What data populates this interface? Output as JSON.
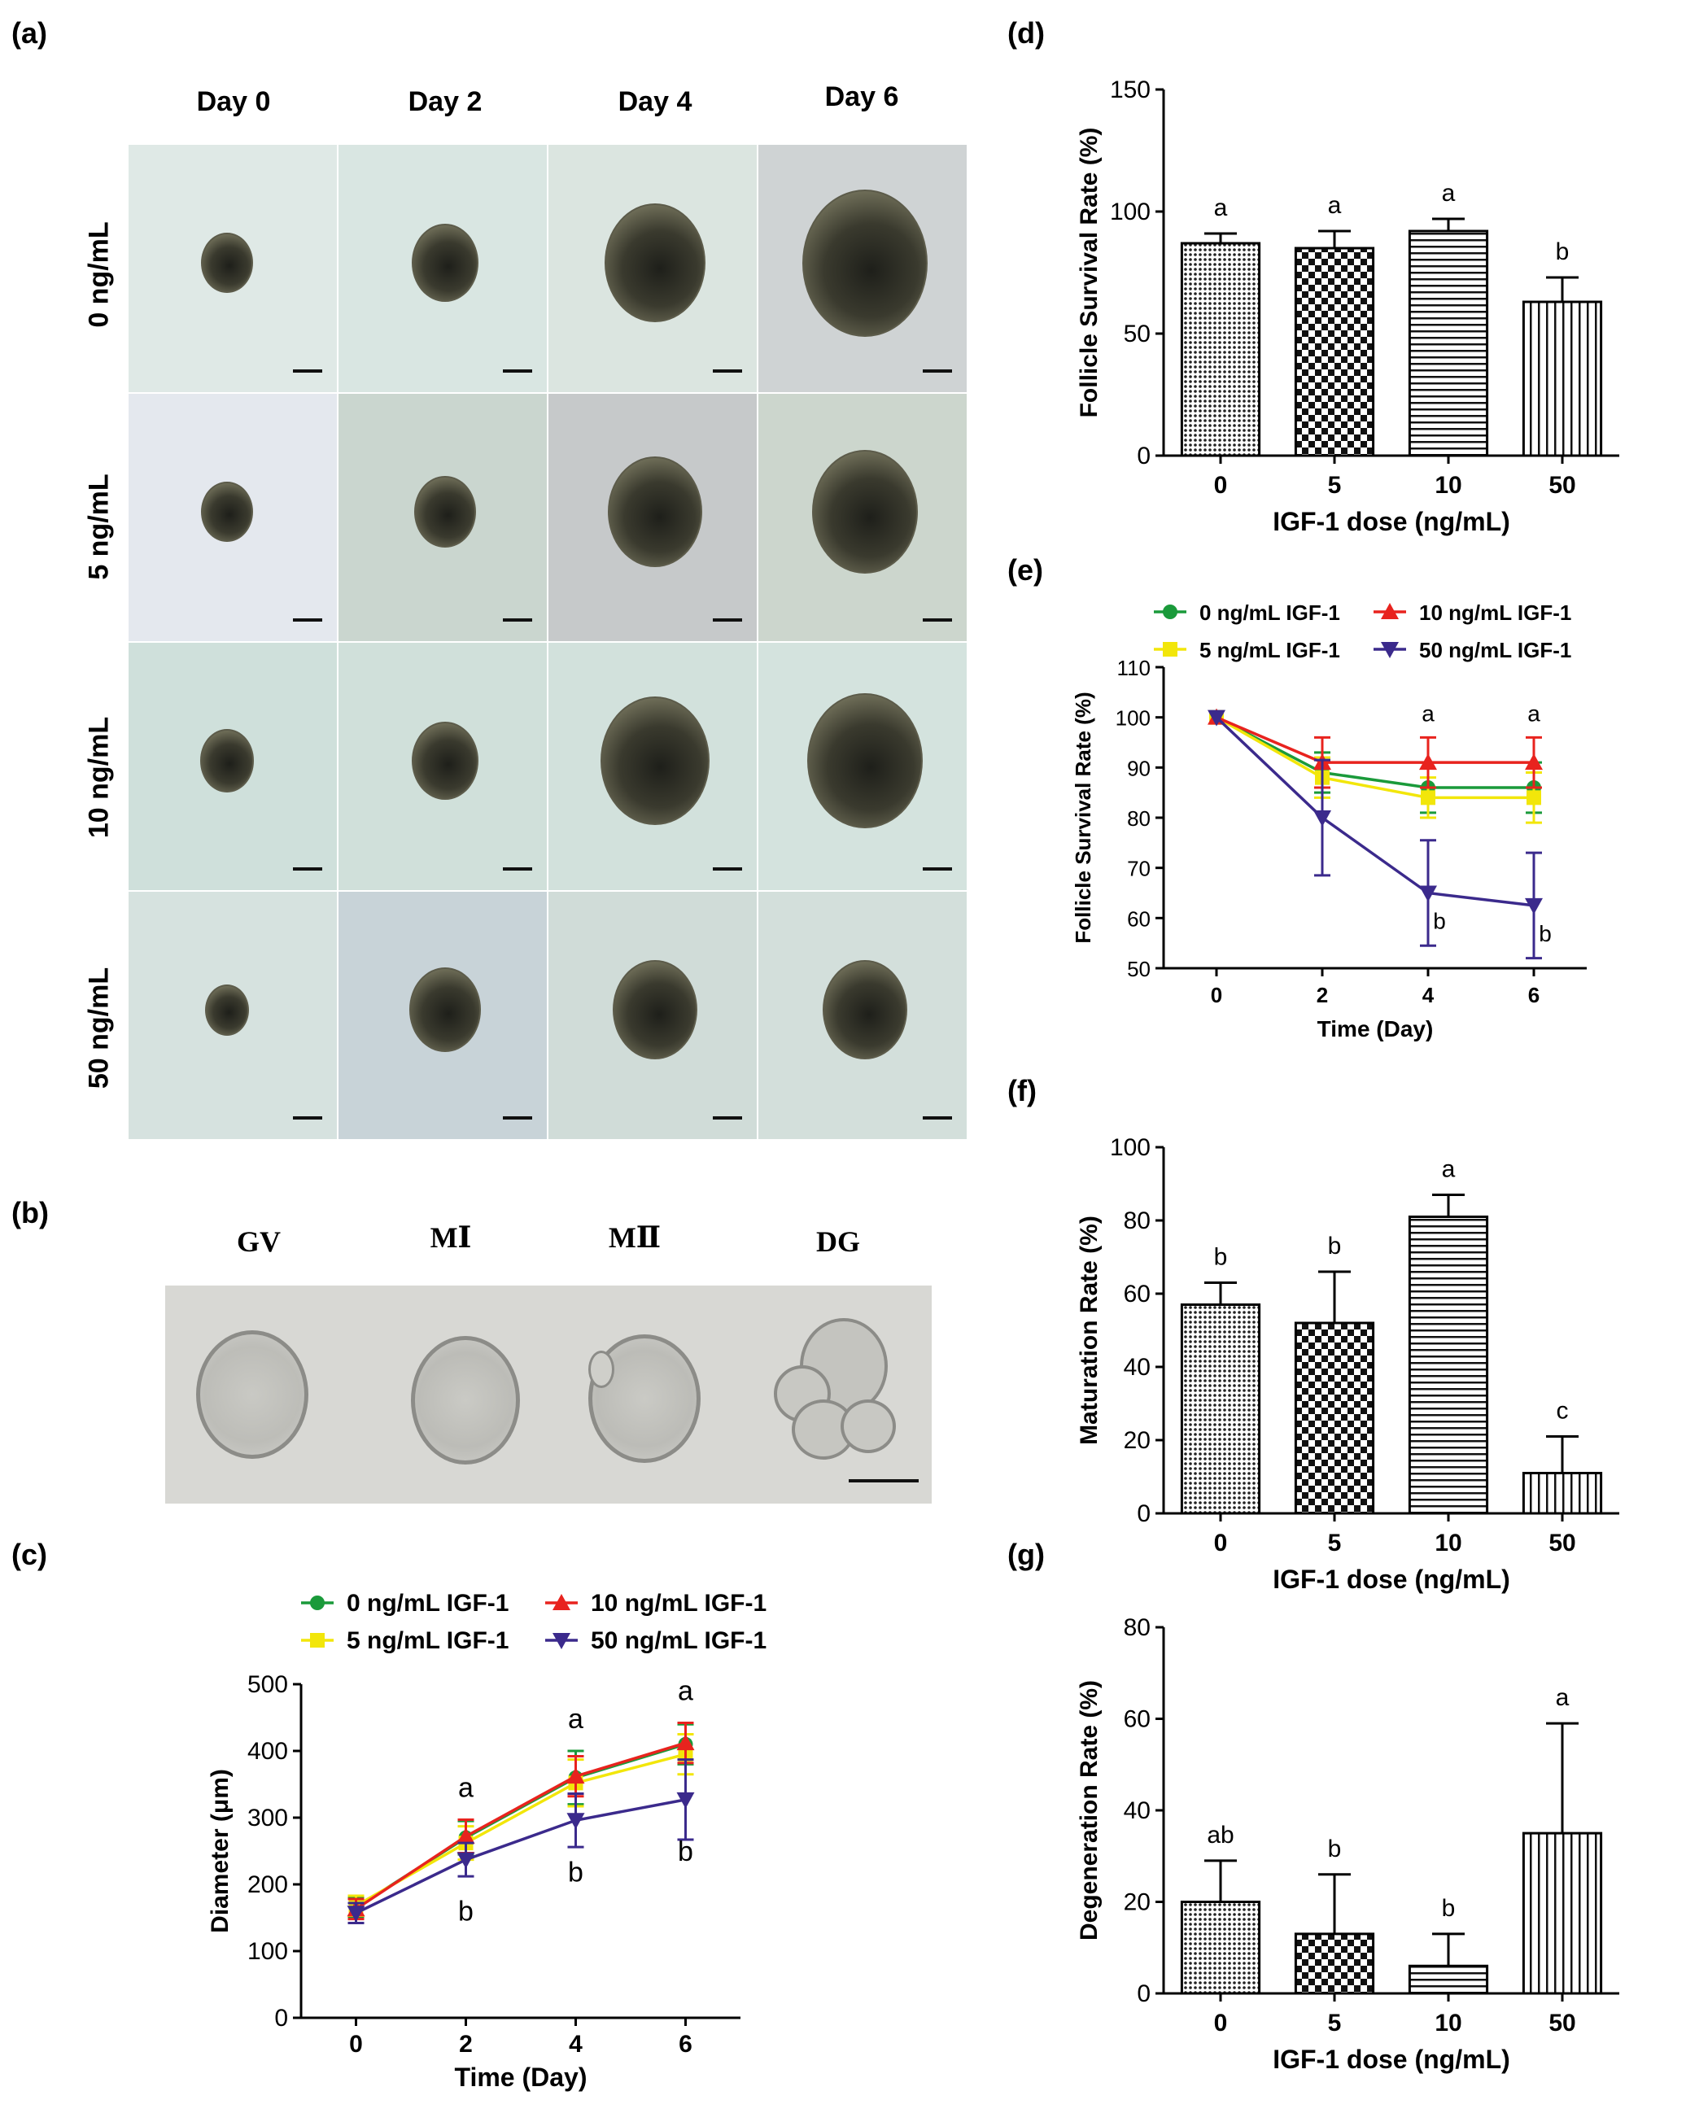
{
  "panels": {
    "a": "(a)",
    "b": "(b)",
    "c": "(c)",
    "d": "(d)",
    "e": "(e)",
    "f": "(f)",
    "g": "(g)"
  },
  "panel_a": {
    "days": [
      "Day 0",
      "Day 2",
      "Day 4",
      "Day 6"
    ],
    "doses": [
      "0 ng/mL",
      "5 ng/mL",
      "10 ng/mL",
      "50 ng/mL"
    ]
  },
  "panel_b": {
    "stages": [
      "GV",
      "MⅠ",
      "MⅡ",
      "DG"
    ]
  },
  "colors": {
    "dose0": "#1a9a3a",
    "dose5": "#f2e60a",
    "dose10": "#e8231e",
    "dose50": "#3b2a8c"
  },
  "chart_data": [
    {
      "id": "c",
      "type": "line",
      "title": "",
      "xlabel": "Time (Day)",
      "ylabel": "Diameter (μm)",
      "x": [
        0,
        2,
        4,
        6
      ],
      "xticks": [
        "0",
        "2",
        "4",
        "6"
      ],
      "ylim": [
        0,
        500
      ],
      "yticks": [
        "0",
        "100",
        "200",
        "300",
        "400",
        "500"
      ],
      "legend": [
        "0 ng/mL IGF-1",
        "10 ng/mL IGF-1",
        "5 ng/mL IGF-1",
        "50 ng/mL IGF-1"
      ],
      "series": [
        {
          "name": "0 ng/mL IGF-1",
          "values": [
            165,
            270,
            360,
            410
          ],
          "err": [
            15,
            25,
            40,
            30
          ]
        },
        {
          "name": "5 ng/mL IGF-1",
          "values": [
            168,
            262,
            352,
            395
          ],
          "err": [
            15,
            25,
            35,
            30
          ]
        },
        {
          "name": "10 ng/mL IGF-1",
          "values": [
            163,
            272,
            362,
            412
          ],
          "err": [
            15,
            25,
            30,
            30
          ]
        },
        {
          "name": "50 ng/mL IGF-1",
          "values": [
            157,
            237,
            296,
            327
          ],
          "err": [
            15,
            25,
            40,
            60
          ]
        }
      ],
      "annotations_top": [
        "a",
        "a",
        "a"
      ],
      "annotations_bottom": [
        "b",
        "b",
        "b"
      ]
    },
    {
      "id": "d",
      "type": "bar",
      "xlabel": "IGF-1 dose (ng/mL)",
      "ylabel": "Follicle Survival Rate (%)",
      "categories": [
        "0",
        "5",
        "10",
        "50"
      ],
      "values": [
        87,
        85,
        92,
        63
      ],
      "err": [
        4,
        7,
        5,
        10
      ],
      "letters": [
        "a",
        "a",
        "a",
        "b"
      ],
      "ylim": [
        0,
        150
      ],
      "yticks": [
        "0",
        "50",
        "100",
        "150"
      ]
    },
    {
      "id": "e",
      "type": "line",
      "xlabel": "Time (Day)",
      "ylabel": "Follicle Survival Rate (%)",
      "x": [
        0,
        2,
        4,
        6
      ],
      "xticks": [
        "0",
        "2",
        "4",
        "6"
      ],
      "ylim": [
        50,
        110
      ],
      "yticks": [
        "50",
        "60",
        "70",
        "80",
        "90",
        "100",
        "110"
      ],
      "legend": [
        "0 ng/mL IGF-1",
        "10 ng/mL IGF-1",
        "5 ng/mL IGF-1",
        "50 ng/mL IGF-1"
      ],
      "series": [
        {
          "name": "0 ng/mL IGF-1",
          "values": [
            100,
            89,
            86,
            86
          ],
          "err": [
            0,
            4,
            5,
            5
          ]
        },
        {
          "name": "5 ng/mL IGF-1",
          "values": [
            100,
            88,
            84,
            84
          ],
          "err": [
            0,
            4,
            4,
            5
          ]
        },
        {
          "name": "10 ng/mL IGF-1",
          "values": [
            100,
            91,
            91,
            91
          ],
          "err": [
            0,
            5,
            5,
            5
          ]
        },
        {
          "name": "50 ng/mL IGF-1",
          "values": [
            100,
            80,
            65,
            62.5
          ],
          "err": [
            0,
            11.5,
            10.5,
            10.5
          ]
        }
      ],
      "annotations_top": [
        "a",
        "a"
      ],
      "annotations_bottom": [
        "b",
        "b"
      ]
    },
    {
      "id": "f",
      "type": "bar",
      "xlabel": "IGF-1 dose (ng/mL)",
      "ylabel": "Maturation Rate (%)",
      "categories": [
        "0",
        "5",
        "10",
        "50"
      ],
      "values": [
        57,
        52,
        81,
        11
      ],
      "err": [
        6,
        14,
        6,
        10
      ],
      "letters": [
        "b",
        "b",
        "a",
        "c"
      ],
      "ylim": [
        0,
        100
      ],
      "yticks": [
        "0",
        "20",
        "40",
        "60",
        "80",
        "100"
      ]
    },
    {
      "id": "g",
      "type": "bar",
      "xlabel": "IGF-1 dose (ng/mL)",
      "ylabel": "Degeneration Rate (%)",
      "categories": [
        "0",
        "5",
        "10",
        "50"
      ],
      "values": [
        20,
        13,
        6,
        35
      ],
      "err": [
        9,
        13,
        7,
        24
      ],
      "letters": [
        "ab",
        "b",
        "b",
        "a"
      ],
      "ylim": [
        0,
        80
      ],
      "yticks": [
        "0",
        "20",
        "40",
        "60",
        "80"
      ]
    }
  ]
}
